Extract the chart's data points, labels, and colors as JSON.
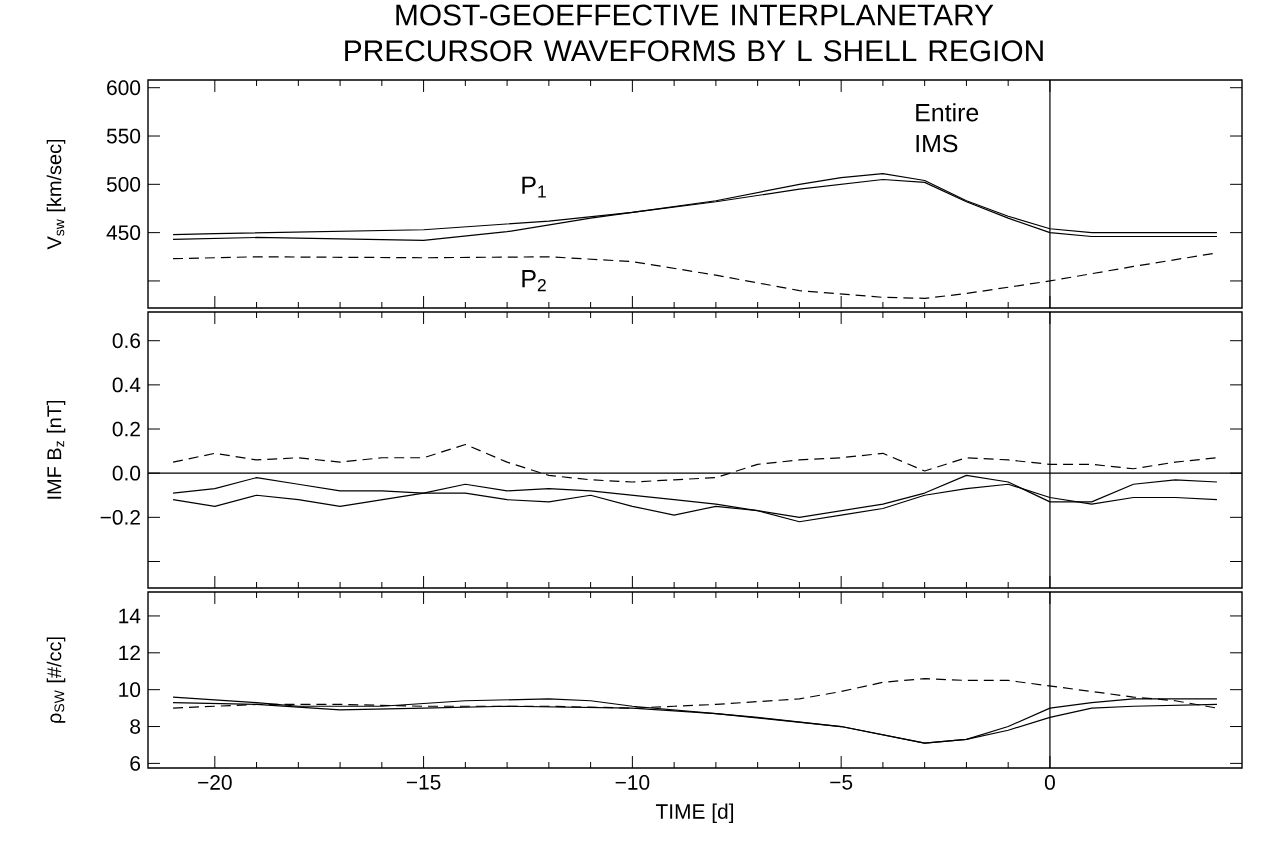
{
  "chart_data": [
    {
      "type": "line",
      "title": "MOST-GEOEFFECTIVE INTERPLANETARY PRECURSOR WAVEFORMS BY L SHELL REGION",
      "ylabel": "V$_{sw}$ [km/sec]",
      "xlim": [
        -21.6,
        4.6
      ],
      "ylim": [
        372,
        608
      ],
      "xticks": [
        -20,
        -15,
        -10,
        -5,
        0
      ],
      "yticks": [
        {
          "value": 400,
          "label": null
        },
        450,
        500,
        550,
        600
      ],
      "tick_labels": "y",
      "grid": false,
      "series": [
        {
          "color": "#000000",
          "line_style": "solid",
          "x": [
            -21,
            -20,
            -15,
            -12,
            -10,
            -8,
            -6,
            -5,
            -4,
            -3,
            -2,
            -1,
            0,
            1,
            2,
            4
          ],
          "values": [
            448,
            449,
            453,
            462,
            471,
            483,
            500,
            507,
            511,
            504,
            483,
            467,
            454,
            450,
            450,
            450
          ]
        },
        {
          "color": "#000000",
          "line_style": "solid",
          "x": [
            -21,
            -19,
            -15,
            -13,
            -11,
            -10,
            -8,
            -6,
            -4,
            -3,
            -2,
            -1,
            0,
            1,
            4
          ],
          "values": [
            443,
            445,
            442,
            451,
            465,
            471,
            482,
            495,
            505,
            502,
            482,
            465,
            450,
            446,
            446
          ]
        },
        {
          "color": "#000000",
          "line_style": "dashed",
          "x": [
            -21,
            -19,
            -15,
            -12,
            -10,
            -8,
            -6,
            -4,
            -3,
            -2,
            0,
            2,
            4
          ],
          "values": [
            423,
            425,
            424,
            425,
            420,
            406,
            390,
            383,
            382,
            387,
            400,
            415,
            429
          ]
        }
      ],
      "ref_lines": [
        {
          "axis": "x",
          "value": 0
        }
      ],
      "annotations": [
        "P$_{1}$",
        "P$_{2}$",
        "Entire IMS"
      ]
    },
    {
      "type": "line",
      "ylabel": "IMF B$_{z}$ [nT]",
      "xlim": [
        -21.6,
        4.6
      ],
      "ylim": [
        -0.52,
        0.73
      ],
      "xticks": [
        -20,
        -15,
        -10,
        -5,
        0
      ],
      "yticks": [
        {
          "value": -0.4,
          "label": null
        },
        {
          "value": -0.2,
          "label": "−0.2"
        },
        {
          "value": 0,
          "label": "0.0"
        },
        0.2,
        0.4,
        0.6
      ],
      "tick_labels": "y",
      "grid": false,
      "x": [
        -21,
        -20,
        -19,
        -18,
        -17,
        -16,
        -15,
        -14,
        -13,
        -12,
        -11,
        -10,
        -9,
        -8,
        -7,
        -6,
        -5,
        -4,
        -3,
        -2,
        -1,
        0,
        1,
        2,
        3,
        4
      ],
      "series": [
        {
          "color": "#000000",
          "line_style": "solid",
          "values": [
            -0.09,
            -0.07,
            -0.02,
            -0.05,
            -0.08,
            -0.08,
            -0.09,
            -0.05,
            -0.08,
            -0.07,
            -0.08,
            -0.1,
            -0.12,
            -0.14,
            -0.17,
            -0.2,
            -0.17,
            -0.14,
            -0.09,
            -0.01,
            -0.04,
            -0.13,
            -0.13,
            -0.05,
            -0.03,
            -0.04
          ]
        },
        {
          "color": "#000000",
          "line_style": "solid",
          "values": [
            -0.12,
            -0.15,
            -0.1,
            -0.12,
            -0.15,
            -0.12,
            -0.09,
            -0.09,
            -0.12,
            -0.13,
            -0.1,
            -0.15,
            -0.19,
            -0.15,
            -0.17,
            -0.22,
            -0.19,
            -0.16,
            -0.1,
            -0.07,
            -0.05,
            -0.11,
            -0.14,
            -0.11,
            -0.11,
            -0.12
          ]
        },
        {
          "color": "#000000",
          "line_style": "dashed",
          "values": [
            0.05,
            0.09,
            0.06,
            0.07,
            0.05,
            0.07,
            0.07,
            0.13,
            0.05,
            -0.01,
            -0.03,
            -0.04,
            -0.03,
            -0.02,
            0.04,
            0.06,
            0.07,
            0.09,
            0.01,
            0.07,
            0.06,
            0.04,
            0.04,
            0.02,
            0.05,
            0.07
          ]
        }
      ],
      "ref_lines": [
        {
          "axis": "x",
          "value": 0
        },
        {
          "axis": "y",
          "value": 0
        }
      ]
    },
    {
      "type": "line",
      "xlabel": "TIME [d]",
      "ylabel": "ρ$_{SW}$ [#/cc]",
      "xlim": [
        -21.6,
        4.6
      ],
      "ylim": [
        5.75,
        15.3
      ],
      "xticks": [
        {
          "value": -20,
          "label": "−20"
        },
        {
          "value": -15,
          "label": "−15"
        },
        {
          "value": -10,
          "label": "−10"
        },
        {
          "value": -5,
          "label": "−5"
        },
        0
      ],
      "yticks": [
        6,
        8,
        10,
        12,
        14
      ],
      "grid": false,
      "series": [
        {
          "color": "#000000",
          "line_style": "solid",
          "x": [
            -21,
            -19,
            -18,
            -16,
            -14,
            -12,
            -11,
            -10,
            -8,
            -7,
            -5,
            -3,
            -2,
            -1,
            0,
            1,
            2,
            4
          ],
          "values": [
            9.6,
            9.3,
            9.1,
            9.1,
            9.4,
            9.5,
            9.4,
            9.1,
            8.7,
            8.5,
            8.0,
            7.1,
            7.3,
            8.0,
            9.0,
            9.3,
            9.5,
            9.5
          ]
        },
        {
          "color": "#000000",
          "line_style": "solid",
          "x": [
            -21,
            -19,
            -17,
            -15,
            -13,
            -10,
            -8,
            -5,
            -3,
            -2,
            -1,
            0,
            1,
            2,
            4
          ],
          "values": [
            9.3,
            9.2,
            8.9,
            9.0,
            9.1,
            9.0,
            8.7,
            8.0,
            7.1,
            7.3,
            7.8,
            8.5,
            9.0,
            9.1,
            9.2
          ]
        },
        {
          "color": "#000000",
          "line_style": "dashed",
          "x": [
            -21,
            -19,
            -17,
            -15,
            -12,
            -10,
            -9,
            -8,
            -6,
            -5,
            -4,
            -3,
            -2,
            -1,
            0,
            1,
            2,
            3,
            4
          ],
          "values": [
            9.0,
            9.2,
            9.2,
            9.1,
            9.1,
            9.0,
            9.1,
            9.2,
            9.5,
            9.9,
            10.4,
            10.6,
            10.5,
            10.5,
            10.2,
            9.9,
            9.6,
            9.4,
            9.0
          ]
        }
      ],
      "ref_lines": [
        {
          "axis": "x",
          "value": 0
        }
      ]
    }
  ]
}
